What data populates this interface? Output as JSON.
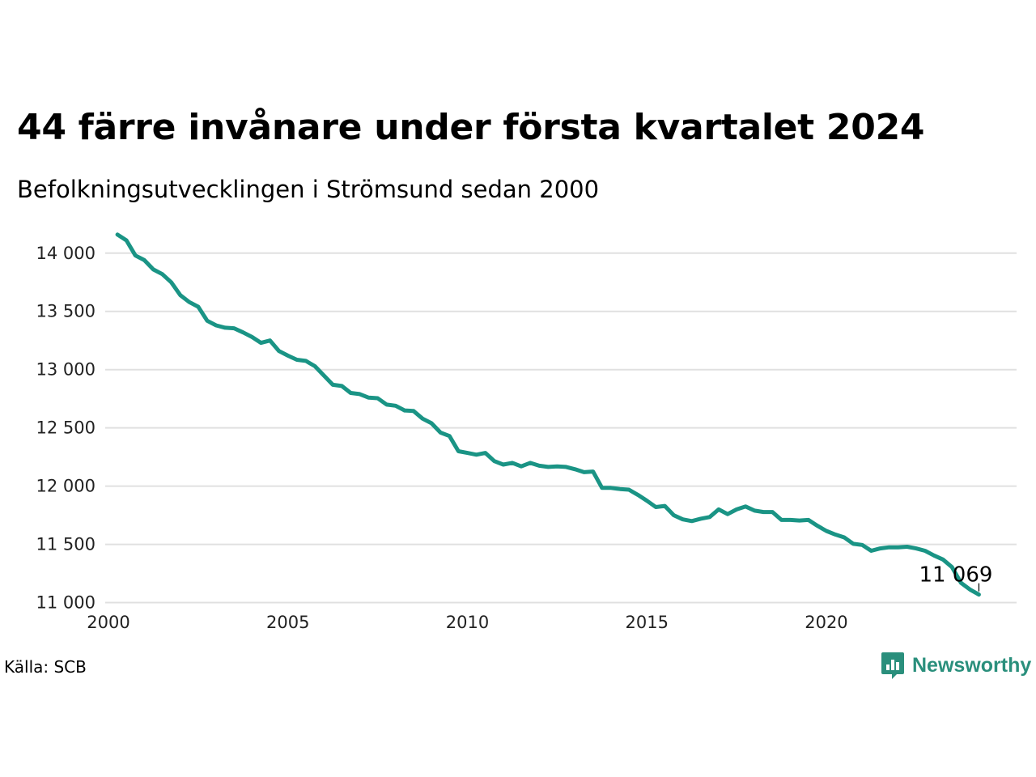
{
  "chart_data": {
    "type": "line",
    "title": "44 färre invånare under första kvartalet 2024",
    "subtitle": "Befolkningsutvecklingen i Strömsund sedan 2000",
    "xlabel": "",
    "ylabel": "",
    "xlim": [
      2000,
      2025.3
    ],
    "ylim": [
      10990,
      14200
    ],
    "yticks": [
      11000,
      11500,
      12000,
      12500,
      13000,
      13500,
      14000
    ],
    "ytick_labels": [
      "11 000",
      "11 500",
      "12 000",
      "12 500",
      "13 000",
      "13 500",
      "14 000"
    ],
    "xticks": [
      2000,
      2005,
      2010,
      2015,
      2020
    ],
    "xtick_labels": [
      "2000",
      "2005",
      "2010",
      "2015",
      "2020"
    ],
    "grid": "horizontal",
    "color": "#1a9485",
    "series": [
      {
        "x": [
          2000.25,
          2000.5,
          2000.75,
          2001.0,
          2001.25,
          2001.5,
          2001.75,
          2002.0,
          2002.25,
          2002.5,
          2002.75,
          2003.0,
          2003.25,
          2003.5,
          2003.75,
          2004.0,
          2004.25,
          2004.5,
          2004.75,
          2005.0,
          2005.25,
          2005.5,
          2005.75,
          2006.0,
          2006.25,
          2006.5,
          2006.75,
          2007.0,
          2007.25,
          2007.5,
          2007.75,
          2008.0,
          2008.25,
          2008.5,
          2008.75,
          2009.0,
          2009.25,
          2009.5,
          2009.75,
          2010.0,
          2010.25,
          2010.5,
          2010.75,
          2011.0,
          2011.25,
          2011.5,
          2011.75,
          2012.0,
          2012.25,
          2012.5,
          2012.75,
          2013.0,
          2013.25,
          2013.5,
          2013.75,
          2014.0,
          2014.25,
          2014.5,
          2014.75,
          2015.0,
          2015.25,
          2015.5,
          2015.75,
          2016.0,
          2016.25,
          2016.5,
          2016.75,
          2017.0,
          2017.25,
          2017.5,
          2017.75,
          2018.0,
          2018.25,
          2018.5,
          2018.75,
          2019.0,
          2019.25,
          2019.5,
          2019.75,
          2020.0,
          2020.25,
          2020.5,
          2020.75,
          2021.0,
          2021.25,
          2021.5,
          2021.75,
          2022.0,
          2022.25,
          2022.5,
          2022.75,
          2023.0,
          2023.25,
          2023.5,
          2023.75,
          2024.0,
          2024.25
        ],
        "values": [
          14160,
          14110,
          13980,
          13940,
          13860,
          13820,
          13750,
          13640,
          13580,
          13540,
          13420,
          13380,
          13360,
          13355,
          13320,
          13280,
          13230,
          13250,
          13160,
          13120,
          13085,
          13075,
          13030,
          12950,
          12870,
          12860,
          12800,
          12790,
          12760,
          12755,
          12700,
          12690,
          12650,
          12645,
          12580,
          12540,
          12460,
          12430,
          12300,
          12285,
          12270,
          12285,
          12215,
          12185,
          12200,
          12170,
          12200,
          12175,
          12165,
          12170,
          12165,
          12145,
          12120,
          12125,
          11985,
          11985,
          11975,
          11970,
          11925,
          11875,
          11820,
          11830,
          11750,
          11715,
          11700,
          11720,
          11735,
          11800,
          11760,
          11800,
          11825,
          11790,
          11778,
          11778,
          11710,
          11710,
          11705,
          11710,
          11660,
          11615,
          11585,
          11560,
          11505,
          11495,
          11445,
          11465,
          11475,
          11475,
          11480,
          11465,
          11445,
          11405,
          11370,
          11305,
          11170,
          11113,
          11069
        ]
      }
    ],
    "last_value_label": "11 069"
  },
  "source": "Källa: SCB",
  "brand": {
    "name": "Newsworthy",
    "color": "#2a8f7c",
    "icon": "bar-chart-speech-bubble-icon"
  }
}
